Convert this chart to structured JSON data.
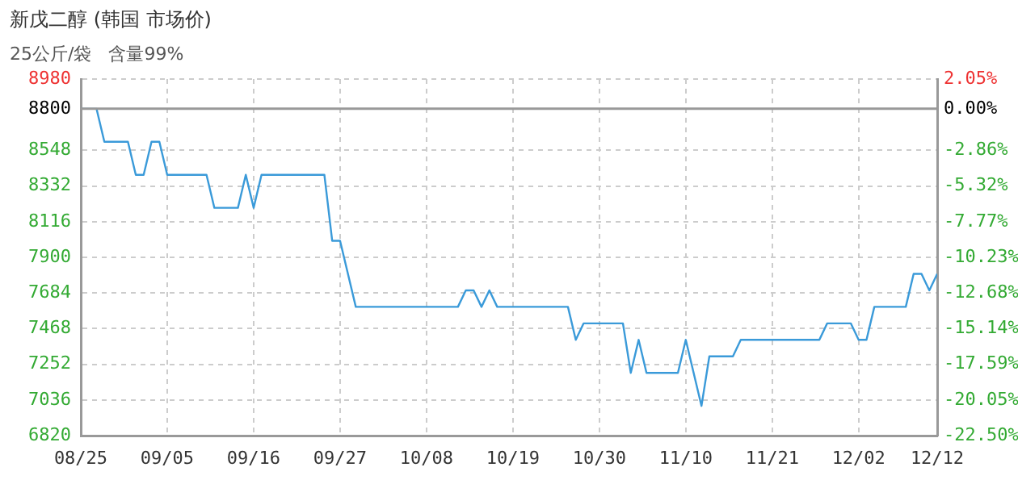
{
  "chart_data": {
    "type": "line",
    "title": "新戊二醇 (韩国 市场价)",
    "subtitle": "25公斤/袋   含量99%",
    "x": [
      "--08-25",
      "--08-27",
      "--08-28",
      "--08-31",
      "--09-01",
      "--09-02",
      "--09-03",
      "--09-04",
      "--09-05",
      "--09-10",
      "--09-11",
      "--09-14",
      "--09-15",
      "--09-16",
      "--09-17",
      "--09-25",
      "--09-26",
      "--09-27",
      "--09-29",
      "--10-12",
      "--10-13",
      "--10-14",
      "--10-15",
      "--10-16",
      "--10-17",
      "--10-26",
      "--10-27",
      "--10-28",
      "--11-02",
      "--11-03",
      "--11-04",
      "--11-05",
      "--11-09",
      "--11-10",
      "--11-12",
      "--11-13",
      "--11-16",
      "--11-17",
      "--11-27",
      "--11-28",
      "--12-01",
      "--12-02",
      "--12-03",
      "--12-04",
      "--12-08",
      "--12-09",
      "--12-10",
      "--12-11",
      "--12-12"
    ],
    "series": [
      {
        "color": "#3a9ad9",
        "values": [
          8800,
          8800,
          8600,
          8600,
          8400,
          8400,
          8600,
          8600,
          8400,
          8400,
          8200,
          8200,
          8400,
          8200,
          8400,
          8400,
          8000,
          8000,
          7600,
          7600,
          7700,
          7700,
          7600,
          7700,
          7600,
          7600,
          7400,
          7500,
          7500,
          7200,
          7400,
          7200,
          7200,
          7400,
          7000,
          7300,
          7300,
          7400,
          7400,
          7500,
          7500,
          7400,
          7400,
          7600,
          7600,
          7800,
          7800,
          7700,
          7800
        ]
      }
    ],
    "xlim": [
      "--08-25",
      "--12-12"
    ],
    "xticks": [
      {
        "value": "--08-25",
        "label": "08/25"
      },
      {
        "value": "--09-05",
        "label": "09/05"
      },
      {
        "value": "--09-16",
        "label": "09/16"
      },
      {
        "value": "--09-27",
        "label": "09/27"
      },
      {
        "value": "--10-08",
        "label": "10/08"
      },
      {
        "value": "--10-19",
        "label": "10/19"
      },
      {
        "value": "--10-30",
        "label": "10/30"
      },
      {
        "value": "--11-10",
        "label": "11/10"
      },
      {
        "value": "--11-21",
        "label": "11/21"
      },
      {
        "value": "--12-02",
        "label": "12/02"
      },
      {
        "value": "--12-12",
        "label": "12/12"
      }
    ],
    "ylim": [
      6820,
      8980
    ],
    "yticks": [
      6820,
      7036,
      7252,
      7468,
      7684,
      7900,
      8116,
      8332,
      8548,
      8800,
      8980
    ],
    "y2lim": [
      -22.5,
      2.05
    ],
    "y2ticks": [
      {
        "value": -22.5,
        "label": "-22.50%"
      },
      {
        "value": -20.05,
        "label": "-20.05%"
      },
      {
        "value": -17.59,
        "label": "-17.59%"
      },
      {
        "value": -15.14,
        "label": "-15.14%"
      },
      {
        "value": -12.68,
        "label": "-12.68%"
      },
      {
        "value": -10.23,
        "label": "-10.23%"
      },
      {
        "value": -7.77,
        "label": "-7.77%"
      },
      {
        "value": -5.32,
        "label": "-5.32%"
      },
      {
        "value": -2.86,
        "label": "-2.86%"
      },
      {
        "value": 0,
        "label": "0.00%"
      },
      {
        "value": 2.05,
        "label": "2.05%"
      }
    ],
    "ref_lines": [
      {
        "axis": "y",
        "value": 8800,
        "color": "#999999"
      }
    ],
    "grid": true,
    "legend": false,
    "marker": "none",
    "line_style": "solid"
  }
}
